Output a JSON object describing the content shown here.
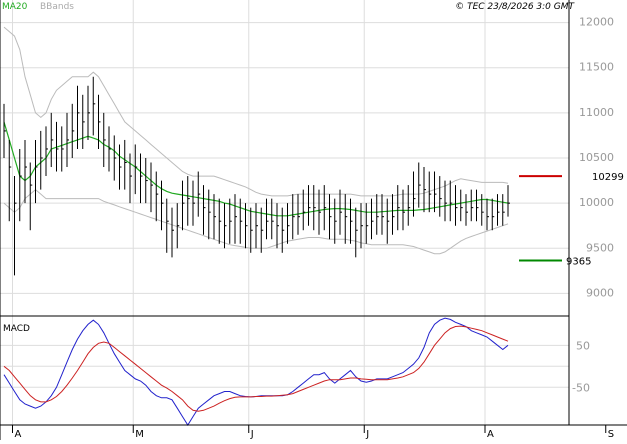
{
  "header": {
    "legend_ma": "MA20",
    "legend_bb": "BBands",
    "copyright": "© TEC 23/8/2026 3:0 GMT"
  },
  "colors": {
    "background": "#ffffff",
    "grid": "#dddddd",
    "price_bar": "#000000",
    "ma20": "#22aa22",
    "bbands": "#bbbbbb",
    "macd_line": "#2222cc",
    "signal_line": "#cc2222",
    "resistance": "#cc0000",
    "support": "#008800",
    "axis_text": "#999999",
    "legend_ma_text": "#22aa22",
    "legend_bb_text": "#aaaaaa"
  },
  "chart_data": [
    {
      "type": "line",
      "title": "",
      "ylim": [
        8750,
        12250
      ],
      "y_ticks": [
        9000,
        9500,
        10000,
        10500,
        11000,
        11500,
        12000
      ],
      "y_tick_labels": [
        "9000",
        "9500",
        "10000",
        "10500",
        "11000",
        "11500",
        "12000"
      ],
      "x_ticks": [
        {
          "label": "A",
          "index": 2
        },
        {
          "label": "M",
          "index": 25
        },
        {
          "label": "J",
          "index": 47
        },
        {
          "label": "J",
          "index": 69
        },
        {
          "label": "A",
          "index": 92
        },
        {
          "label": "S",
          "index": 115
        }
      ],
      "series": [
        {
          "name": "MA20",
          "role": "ma20",
          "values": [
            10900,
            10700,
            10500,
            10300,
            10250,
            10300,
            10400,
            10450,
            10500,
            10600,
            10620,
            10640,
            10660,
            10680,
            10700,
            10720,
            10740,
            10720,
            10700,
            10650,
            10620,
            10580,
            10520,
            10480,
            10440,
            10400,
            10350,
            10300,
            10250,
            10200,
            10160,
            10130,
            10110,
            10100,
            10090,
            10080,
            10070,
            10060,
            10050,
            10040,
            10030,
            10020,
            10000,
            9990,
            9970,
            9950,
            9930,
            9910,
            9900,
            9890,
            9880,
            9870,
            9860,
            9860,
            9860,
            9870,
            9880,
            9890,
            9900,
            9910,
            9920,
            9930,
            9935,
            9940,
            9940,
            9935,
            9930,
            9920,
            9910,
            9900,
            9900,
            9900,
            9905,
            9910,
            9915,
            9920,
            9920,
            9920,
            9920,
            9925,
            9930,
            9940,
            9950,
            9960,
            9970,
            9980,
            9990,
            10000,
            10010,
            10020,
            10030,
            10040,
            10040,
            10030,
            10020,
            10010,
            10000
          ]
        },
        {
          "name": "BBands upper",
          "role": "bb_upper",
          "values": [
            11950,
            11900,
            11850,
            11700,
            11400,
            11200,
            11000,
            10950,
            11000,
            11150,
            11250,
            11300,
            11350,
            11400,
            11400,
            11400,
            11400,
            11450,
            11400,
            11300,
            11200,
            11100,
            11000,
            10900,
            10850,
            10800,
            10750,
            10700,
            10650,
            10600,
            10550,
            10500,
            10450,
            10400,
            10350,
            10320,
            10300,
            10300,
            10300,
            10300,
            10300,
            10280,
            10260,
            10240,
            10220,
            10200,
            10180,
            10150,
            10120,
            10100,
            10090,
            10080,
            10080,
            10080,
            10080,
            10090,
            10100,
            10100,
            10100,
            10100,
            10100,
            10100,
            10100,
            10100,
            10100,
            10100,
            10100,
            10090,
            10080,
            10080,
            10080,
            10080,
            10080,
            10080,
            10080,
            10090,
            10100,
            10100,
            10100,
            10100,
            10110,
            10130,
            10150,
            10170,
            10190,
            10220,
            10250,
            10270,
            10260,
            10250,
            10240,
            10230,
            10230,
            10230,
            10230,
            10230,
            10220
          ]
        },
        {
          "name": "BBands lower",
          "role": "bb_lower",
          "values": [
            10000,
            9950,
            9900,
            9950,
            10050,
            10100,
            10150,
            10100,
            10050,
            10050,
            10050,
            10050,
            10050,
            10050,
            10050,
            10050,
            10050,
            10050,
            10050,
            10020,
            10000,
            9980,
            9960,
            9940,
            9920,
            9900,
            9880,
            9860,
            9840,
            9820,
            9800,
            9780,
            9760,
            9740,
            9720,
            9700,
            9680,
            9660,
            9640,
            9620,
            9600,
            9580,
            9560,
            9540,
            9530,
            9520,
            9510,
            9500,
            9500,
            9500,
            9500,
            9520,
            9540,
            9560,
            9580,
            9590,
            9600,
            9610,
            9620,
            9620,
            9620,
            9610,
            9600,
            9600,
            9600,
            9600,
            9590,
            9580,
            9560,
            9550,
            9540,
            9540,
            9540,
            9540,
            9540,
            9540,
            9540,
            9530,
            9520,
            9500,
            9480,
            9460,
            9440,
            9440,
            9460,
            9500,
            9540,
            9580,
            9610,
            9630,
            9650,
            9670,
            9690,
            9710,
            9730,
            9750,
            9770
          ]
        },
        {
          "name": "Price",
          "role": "price",
          "values": [
            10800,
            10400,
            10000,
            10300,
            10400,
            10200,
            10400,
            10500,
            10600,
            10700,
            10600,
            10600,
            10700,
            10800,
            11000,
            10900,
            11000,
            11100,
            10900,
            10700,
            10600,
            10500,
            10400,
            10450,
            10300,
            10400,
            10300,
            10250,
            10200,
            10100,
            10000,
            9800,
            9700,
            9750,
            10000,
            10050,
            10000,
            10100,
            9950,
            9900,
            9850,
            9800,
            9750,
            9800,
            9850,
            9800,
            9750,
            9700,
            9750,
            9700,
            9800,
            9800,
            9750,
            9700,
            9750,
            9850,
            9850,
            9900,
            9950,
            9950,
            9900,
            9950,
            9850,
            9800,
            9900,
            9850,
            9800,
            9700,
            9750,
            9750,
            9800,
            9850,
            9850,
            9800,
            9850,
            9950,
            9900,
            9950,
            10050,
            10200,
            10150,
            10100,
            10100,
            10050,
            10000,
            10000,
            9950,
            9950,
            9900,
            9950,
            9950,
            9900,
            9850,
            9850,
            9900,
            9900,
            10000
          ]
        }
      ],
      "price_low_offsets": [
        300,
        600,
        800,
        500,
        400,
        500,
        400,
        350,
        300,
        300,
        250,
        250,
        300,
        300,
        400,
        300,
        300,
        350,
        300,
        300,
        250,
        250,
        250,
        300,
        300,
        300,
        300,
        250,
        300,
        300,
        300,
        350,
        300,
        250,
        300,
        300,
        250,
        250,
        300,
        300,
        250,
        250,
        250,
        250,
        300,
        250,
        250,
        250,
        250,
        250,
        200,
        200,
        250,
        250,
        200,
        250,
        200,
        200,
        200,
        250,
        250,
        250,
        250,
        250,
        250,
        300,
        250,
        300,
        250,
        200,
        200,
        200,
        200,
        250,
        200,
        250,
        200,
        200,
        200,
        250,
        250,
        200,
        200,
        200,
        200,
        200,
        200,
        150,
        150,
        150,
        150,
        150,
        150,
        150,
        150,
        150,
        150
      ],
      "price_high_offsets": [
        300,
        300,
        300,
        300,
        300,
        250,
        300,
        300,
        250,
        300,
        300,
        250,
        300,
        300,
        300,
        300,
        300,
        300,
        300,
        300,
        250,
        250,
        250,
        250,
        250,
        250,
        250,
        250,
        250,
        250,
        250,
        250,
        250,
        250,
        250,
        250,
        250,
        250,
        250,
        250,
        250,
        250,
        250,
        250,
        250,
        250,
        250,
        250,
        250,
        250,
        250,
        250,
        250,
        250,
        250,
        250,
        250,
        250,
        250,
        250,
        250,
        250,
        250,
        250,
        250,
        250,
        250,
        250,
        250,
        250,
        250,
        250,
        250,
        250,
        250,
        250,
        250,
        250,
        300,
        250,
        250,
        250,
        250,
        250,
        250,
        250,
        250,
        200,
        200,
        200,
        200,
        200,
        200,
        200,
        200,
        200,
        200
      ],
      "levels": [
        {
          "label": "10299",
          "value": 10299,
          "role": "resistance"
        },
        {
          "label": "9365",
          "value": 9365,
          "role": "support"
        }
      ]
    },
    {
      "type": "line",
      "title": "MACD",
      "ylim": [
        -140,
        120
      ],
      "y_ticks": [
        50,
        -50
      ],
      "y_tick_labels": [
        "50",
        "-50"
      ],
      "series": [
        {
          "name": "MACD",
          "role": "macd",
          "values": [
            -20,
            -40,
            -60,
            -80,
            -90,
            -95,
            -100,
            -95,
            -85,
            -70,
            -50,
            -20,
            10,
            40,
            65,
            85,
            100,
            110,
            100,
            80,
            55,
            30,
            10,
            -10,
            -20,
            -30,
            -35,
            -45,
            -60,
            -70,
            -75,
            -75,
            -80,
            -100,
            -120,
            -140,
            -120,
            -100,
            -90,
            -80,
            -70,
            -65,
            -60,
            -60,
            -65,
            -70,
            -72,
            -73,
            -72,
            -70,
            -70,
            -70,
            -70,
            -70,
            -68,
            -60,
            -50,
            -40,
            -30,
            -20,
            -20,
            -15,
            -30,
            -40,
            -30,
            -20,
            -10,
            -25,
            -35,
            -38,
            -35,
            -30,
            -30,
            -30,
            -25,
            -20,
            -15,
            -5,
            5,
            20,
            45,
            80,
            100,
            110,
            115,
            112,
            105,
            100,
            95,
            85,
            80,
            75,
            70,
            60,
            50,
            40,
            50
          ]
        },
        {
          "name": "Signal",
          "role": "signal",
          "values": [
            0,
            -10,
            -25,
            -40,
            -55,
            -70,
            -80,
            -85,
            -85,
            -80,
            -72,
            -60,
            -45,
            -28,
            -10,
            10,
            30,
            45,
            55,
            58,
            55,
            45,
            35,
            25,
            15,
            5,
            -5,
            -15,
            -25,
            -35,
            -45,
            -52,
            -60,
            -70,
            -80,
            -95,
            -105,
            -107,
            -105,
            -100,
            -95,
            -88,
            -82,
            -77,
            -74,
            -73,
            -73,
            -73,
            -72,
            -72,
            -71,
            -71,
            -70,
            -69,
            -68,
            -65,
            -60,
            -55,
            -50,
            -45,
            -40,
            -35,
            -32,
            -32,
            -32,
            -30,
            -28,
            -28,
            -30,
            -31,
            -32,
            -32,
            -32,
            -32,
            -30,
            -28,
            -25,
            -20,
            -15,
            -5,
            10,
            30,
            50,
            65,
            80,
            90,
            95,
            96,
            94,
            91,
            88,
            85,
            80,
            75,
            70,
            65,
            60
          ]
        }
      ],
      "zero_line": 0
    }
  ]
}
